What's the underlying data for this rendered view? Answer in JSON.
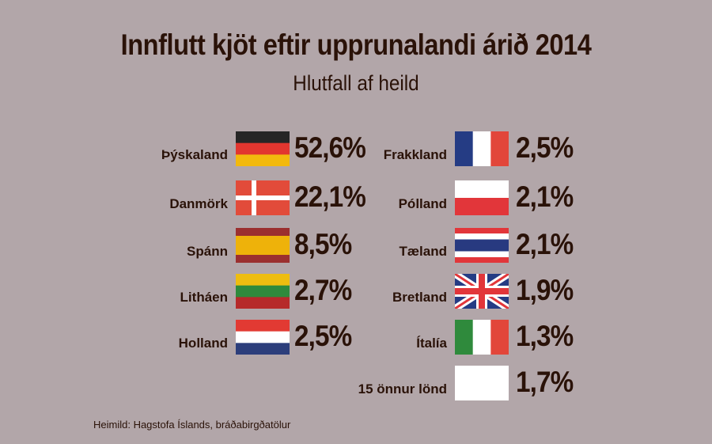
{
  "title": "Innflutt kjöt eftir upprunalandi árið 2014",
  "subtitle": "Hlutfall af heild",
  "source": "Heimild: Hagstofa Íslands, bráðabirgðatölur",
  "chart_data": {
    "type": "table",
    "title": "Innflutt kjöt eftir upprunalandi árið 2014",
    "subtitle": "Hlutfall af heild",
    "categories": [
      "Þýskaland",
      "Danmörk",
      "Spánn",
      "Litháen",
      "Holland",
      "Frakkland",
      "Pólland",
      "Tæland",
      "Bretland",
      "Ítalía",
      "15 önnur lönd"
    ],
    "values": [
      52.6,
      22.1,
      8.5,
      2.7,
      2.5,
      2.5,
      2.1,
      2.1,
      1.9,
      1.3,
      1.7
    ],
    "unit": "%",
    "items": [
      {
        "country": "Þýskaland",
        "value_label": "52,6%",
        "flag": "germany"
      },
      {
        "country": "Danmörk",
        "value_label": "22,1%",
        "flag": "denmark"
      },
      {
        "country": "Spánn",
        "value_label": "8,5%",
        "flag": "spain"
      },
      {
        "country": "Litháen",
        "value_label": "2,7%",
        "flag": "lithuania"
      },
      {
        "country": "Holland",
        "value_label": "2,5%",
        "flag": "netherlands"
      },
      {
        "country": "Frakkland",
        "value_label": "2,5%",
        "flag": "france"
      },
      {
        "country": "Pólland",
        "value_label": "2,1%",
        "flag": "poland"
      },
      {
        "country": "Tæland",
        "value_label": "2,1%",
        "flag": "thailand"
      },
      {
        "country": "Bretland",
        "value_label": "1,9%",
        "flag": "uk"
      },
      {
        "country": "Ítalía",
        "value_label": "1,3%",
        "flag": "italy"
      },
      {
        "country": "15 önnur lönd",
        "value_label": "1,7%",
        "flag": "blank"
      }
    ]
  },
  "colors": {
    "background": "#b2a6a9",
    "text": "#2a1208"
  }
}
